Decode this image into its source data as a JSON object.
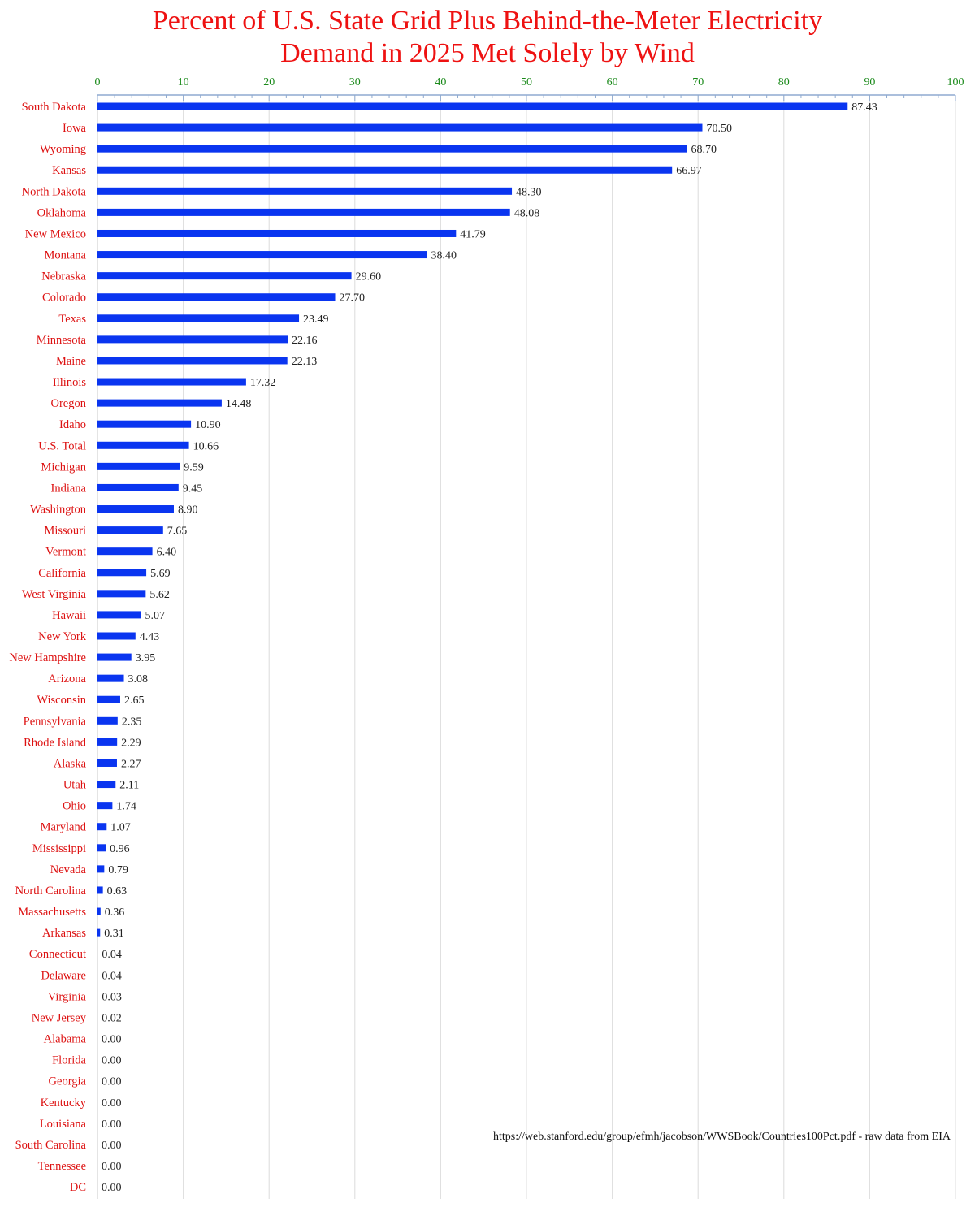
{
  "chart_data": {
    "type": "bar",
    "orientation": "horizontal",
    "title_lines": [
      "Percent of U.S. State Grid Plus Behind-the-Meter Electricity",
      "Demand in 2025 Met Solely by Wind"
    ],
    "x_axis": {
      "position": "top",
      "range": [
        0,
        100
      ],
      "ticks": [
        0,
        10,
        20,
        30,
        40,
        50,
        60,
        70,
        80,
        90,
        100
      ],
      "gridlines": true
    },
    "categories": [
      "South Dakota",
      "Iowa",
      "Wyoming",
      "Kansas",
      "North Dakota",
      "Oklahoma",
      "New Mexico",
      "Montana",
      "Nebraska",
      "Colorado",
      "Texas",
      "Minnesota",
      "Maine",
      "Illinois",
      "Oregon",
      "Idaho",
      "U.S. Total",
      "Michigan",
      "Indiana",
      "Washington",
      "Missouri",
      "Vermont",
      "California",
      "West Virginia",
      "Hawaii",
      "New York",
      "New Hampshire",
      "Arizona",
      "Wisconsin",
      "Pennsylvania",
      "Rhode Island",
      "Alaska",
      "Utah",
      "Ohio",
      "Maryland",
      "Mississippi",
      "Nevada",
      "North Carolina",
      "Massachusetts",
      "Arkansas",
      "Connecticut",
      "Delaware",
      "Virginia",
      "New Jersey",
      "Alabama",
      "Florida",
      "Georgia",
      "Kentucky",
      "Louisiana",
      "South Carolina",
      "Tennessee",
      "DC"
    ],
    "values": [
      87.43,
      70.5,
      68.7,
      66.97,
      48.3,
      48.08,
      41.79,
      38.4,
      29.6,
      27.7,
      23.49,
      22.16,
      22.13,
      17.32,
      14.48,
      10.9,
      10.66,
      9.59,
      9.45,
      8.9,
      7.65,
      6.4,
      5.69,
      5.62,
      5.07,
      4.43,
      3.95,
      3.08,
      2.65,
      2.35,
      2.29,
      2.27,
      2.11,
      1.74,
      1.07,
      0.96,
      0.79,
      0.63,
      0.36,
      0.31,
      0.04,
      0.04,
      0.03,
      0.02,
      0.0,
      0.0,
      0.0,
      0.0,
      0.0,
      0.0,
      0.0,
      0.0
    ],
    "value_labels": [
      "87.43",
      "70.50",
      "68.70",
      "66.97",
      "48.30",
      "48.08",
      "41.79",
      "38.40",
      "29.60",
      "27.70",
      "23.49",
      "22.16",
      "22.13",
      "17.32",
      "14.48",
      "10.90",
      "10.66",
      "9.59",
      "9.45",
      "8.90",
      "7.65",
      "6.40",
      "5.69",
      "5.62",
      "5.07",
      "4.43",
      "3.95",
      "3.08",
      "2.65",
      "2.35",
      "2.29",
      "2.27",
      "2.11",
      "1.74",
      "1.07",
      "0.96",
      "0.79",
      "0.63",
      "0.36",
      "0.31",
      "0.04",
      "0.04",
      "0.03",
      "0.02",
      "0.00",
      "0.00",
      "0.00",
      "0.00",
      "0.00",
      "0.00",
      "0.00",
      "0.00"
    ],
    "source_note": "https://web.stanford.edu/group/efmh/jacobson/WWSBook/Countries100Pct.pdf - raw data from EIA",
    "colors": {
      "bar": "#0a35f0",
      "title": "#ee1111",
      "category_labels": "#dd1111",
      "tick_labels": "#1a8a1a",
      "value_labels": "#222222",
      "gridlines": "#dcdcdc",
      "axis": "#8faad0"
    }
  }
}
